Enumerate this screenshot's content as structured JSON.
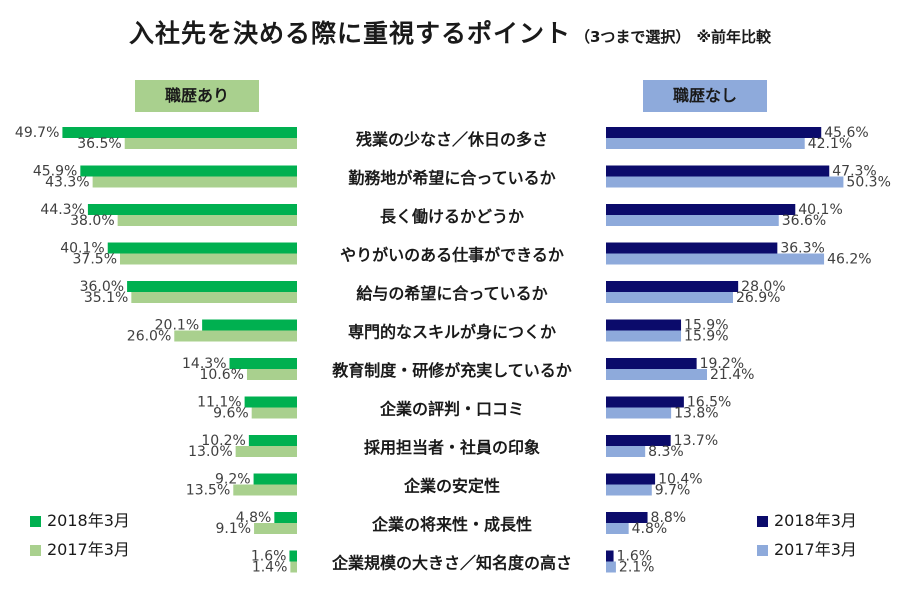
{
  "title": "入社先を決める際に重視するポイント",
  "subtitle": "（3つまで選択）",
  "note": "※前年比較",
  "colors": {
    "left_2018": "#00b050",
    "left_2017": "#a9d08e",
    "right_2018": "#0b0b6b",
    "right_2017": "#8eaadb",
    "text": "#1a1a1a",
    "value_text": "#404040"
  },
  "chart_data": {
    "type": "bar",
    "orientation": "horizontal-butterfly",
    "title": "入社先を決める際に重視するポイント",
    "unit": "%",
    "categories": [
      "残業の少なさ／休日の多さ",
      "勤務地が希望に合っているか",
      "長く働けるかどうか",
      "やりがいのある仕事ができるか",
      "給与の希望に合っているか",
      "専門的なスキルが身につくか",
      "教育制度・研修が充実しているか",
      "企業の評判・口コミ",
      "採用担当者・社員の印象",
      "企業の安定性",
      "企業の将来性・成長性",
      "企業規模の大きさ／知名度の高さ"
    ],
    "panels": [
      {
        "name": "職歴あり",
        "series": [
          {
            "name": "2018年3月",
            "values": [
              49.7,
              45.9,
              44.3,
              40.1,
              36.0,
              20.1,
              14.3,
              11.1,
              10.2,
              9.2,
              4.8,
              1.6
            ],
            "labels": [
              "49.7%",
              "45.9%",
              "44.3%",
              "40.1%",
              "36.0%",
              "20.1%",
              "14.3%",
              "11.1%",
              "10.2%",
              "9.2%",
              "4.8%",
              "1.6%"
            ]
          },
          {
            "name": "2017年3月",
            "values": [
              36.5,
              43.3,
              38.0,
              37.5,
              35.1,
              26.0,
              10.6,
              9.6,
              13.0,
              13.5,
              9.1,
              1.4
            ],
            "labels": [
              "36.5%",
              "43.3%",
              "38.0%",
              "37.5%",
              "35.1%",
              "26.0%",
              "10.6%",
              "9.6%",
              "13.0%",
              "13.5%",
              "9.1%",
              "1.4%"
            ]
          }
        ]
      },
      {
        "name": "職歴なし",
        "series": [
          {
            "name": "2018年3月",
            "values": [
              45.6,
              47.3,
              40.1,
              36.3,
              28.0,
              15.9,
              19.2,
              16.5,
              13.7,
              10.4,
              8.8,
              1.6
            ],
            "labels": [
              "45.6%",
              "47.3%",
              "40.1%",
              "36.3%",
              "28.0%",
              "15.9%",
              "19.2%",
              "16.5%",
              "13.7%",
              "10.4%",
              "8.8%",
              "1.6%"
            ]
          },
          {
            "name": "2017年3月",
            "values": [
              42.1,
              50.3,
              36.6,
              46.2,
              26.9,
              15.9,
              21.4,
              13.8,
              8.3,
              9.7,
              4.8,
              2.1
            ],
            "labels": [
              "42.1%",
              "50.3%",
              "36.6%",
              "46.2%",
              "26.9%",
              "15.9%",
              "21.4%",
              "13.8%",
              "8.3%",
              "9.7%",
              "4.8%",
              "2.1%"
            ]
          }
        ]
      }
    ],
    "legend": {
      "left": [
        "2018年3月",
        "2017年3月"
      ],
      "right": [
        "2018年3月",
        "2017年3月"
      ],
      "placement": "bottom-left and bottom-right"
    }
  }
}
